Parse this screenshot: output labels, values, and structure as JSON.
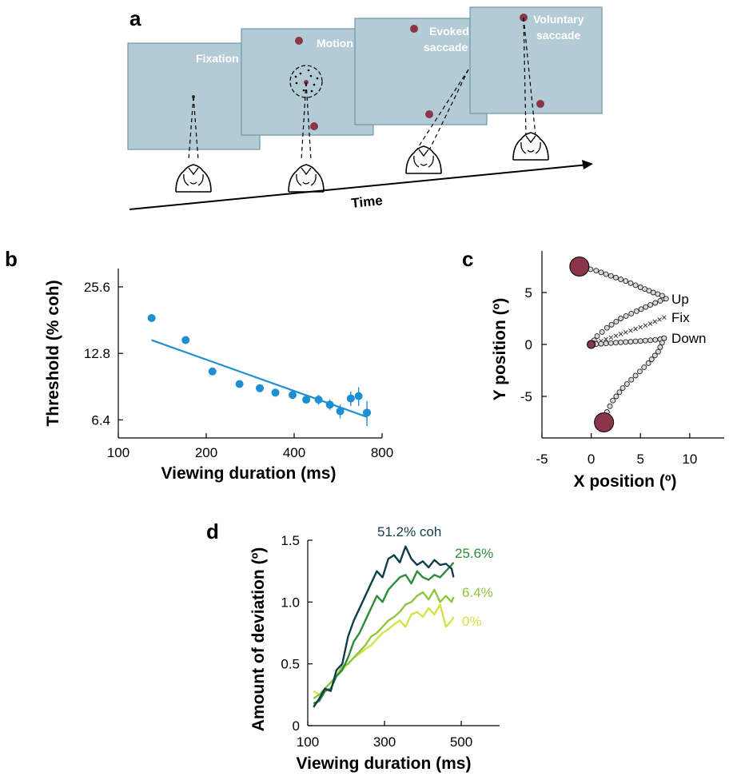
{
  "panel_a": {
    "label": "a",
    "screens": [
      {
        "name": "Fixation",
        "lines": [
          "Fixation"
        ]
      },
      {
        "name": "Motion",
        "lines": [
          "Motion"
        ]
      },
      {
        "name": "Evoked saccade",
        "lines": [
          "Evoked",
          "saccade"
        ]
      },
      {
        "name": "Voluntary saccade",
        "lines": [
          "Voluntary",
          "saccade"
        ]
      }
    ],
    "time_label": "Time",
    "colors": {
      "screen": "#b3cbd4",
      "screen_border": "#6f97a8",
      "target": "#8a3549"
    }
  },
  "chart_data": [
    {
      "panel": "b",
      "type": "scatter",
      "xlabel": "Viewing duration (ms)",
      "ylabel": "Threshold (% coh)",
      "xscale": "log",
      "yscale": "log",
      "xlim": [
        100,
        800
      ],
      "ylim": [
        5.3,
        31
      ],
      "xticks": [
        100,
        200,
        400,
        800
      ],
      "yticks": [
        6.4,
        12.8,
        25.6
      ],
      "ytick_labels": [
        "6.4",
        "12.8",
        "25.6"
      ],
      "points": {
        "x": [
          130,
          170,
          210,
          260,
          305,
          345,
          395,
          440,
          485,
          530,
          575,
          625,
          665,
          710
        ],
        "y": [
          18.5,
          14.7,
          10.6,
          9.3,
          8.9,
          8.5,
          8.3,
          7.9,
          7.9,
          7.5,
          7.0,
          8.0,
          8.2,
          6.9
        ],
        "err": [
          0.4,
          0.4,
          0.3,
          0.3,
          0.3,
          0.3,
          0.3,
          0.3,
          0.4,
          0.4,
          0.5,
          0.6,
          0.8,
          0.9
        ]
      },
      "fit": {
        "x": [
          130,
          710
        ],
        "y": [
          14.7,
          6.6
        ]
      },
      "color": "#1f8fd3",
      "grid": false
    },
    {
      "panel": "c",
      "type": "scatter",
      "xlabel": "X position (º)",
      "ylabel": "Y position (º)",
      "xlim": [
        -5,
        13.5
      ],
      "ylim": [
        -9,
        9
      ],
      "xticks": [
        -5,
        0,
        5,
        10
      ],
      "yticks": [
        -5,
        0,
        5
      ],
      "trajectories": [
        {
          "name": "Up",
          "marker": "circle",
          "x": [
            0,
            0.6,
            1.6,
            3.0,
            4.6,
            6.0,
            7.0,
            7.4
          ],
          "y": [
            0,
            0.8,
            1.6,
            2.5,
            3.2,
            3.8,
            4.2,
            4.4
          ]
        },
        {
          "name": "Fix",
          "marker": "cross",
          "x": [
            0,
            1.5,
            3.0,
            4.5,
            6.0,
            7.4
          ],
          "y": [
            0,
            0.5,
            1.0,
            1.5,
            2.0,
            2.6
          ]
        },
        {
          "name": "Down",
          "marker": "circle",
          "x": [
            0,
            1.5,
            3.0,
            4.5,
            6.0,
            7.0,
            7.4
          ],
          "y": [
            0,
            0.1,
            0.2,
            0.3,
            0.4,
            0.5,
            0.6
          ]
        },
        {
          "name": "",
          "marker": "circle",
          "x": [
            -1.2,
            0.5,
            2.0,
            3.5,
            5.0,
            6.3,
            7.2,
            7.6
          ],
          "y": [
            7.5,
            7.1,
            6.6,
            6.1,
            5.5,
            5.0,
            4.7,
            4.4
          ]
        },
        {
          "name": "",
          "marker": "circle",
          "x": [
            7.4,
            6.8,
            5.8,
            4.5,
            3.2,
            2.2,
            1.6,
            1.3
          ],
          "y": [
            0.6,
            -0.7,
            -1.8,
            -3.0,
            -4.2,
            -5.4,
            -6.5,
            -7.5
          ]
        }
      ],
      "targets": {
        "x": [
          -1.2,
          1.3
        ],
        "y": [
          7.5,
          -7.5
        ]
      },
      "origin": {
        "x": 0,
        "y": 0
      },
      "labels": [
        {
          "text": "Up",
          "x": 7.5,
          "y": 4.4
        },
        {
          "text": "Fix",
          "x": 7.5,
          "y": 2.6
        },
        {
          "text": "Down",
          "x": 7.5,
          "y": 0.6
        }
      ],
      "marker_color": "#8a3549"
    },
    {
      "panel": "d",
      "type": "line",
      "xlabel": "Viewing duration (ms)",
      "ylabel": "Amount of deviation (º)",
      "xlim": [
        100,
        600
      ],
      "ylim": [
        0,
        1.5
      ],
      "xticks": [
        100,
        300,
        500
      ],
      "yticks": [
        0,
        0.5,
        1.0,
        1.5
      ],
      "ytick_labels": [
        "0",
        "0.5",
        "1.0",
        "1.5"
      ],
      "series": [
        {
          "name": "51.2% coh",
          "color": "#0f3d4a",
          "x": [
            115,
            130,
            145,
            160,
            175,
            190,
            205,
            220,
            235,
            250,
            265,
            280,
            295,
            310,
            325,
            340,
            355,
            370,
            385,
            400,
            415,
            430,
            445,
            460,
            475,
            480
          ],
          "y": [
            0.15,
            0.22,
            0.3,
            0.28,
            0.45,
            0.5,
            0.72,
            0.85,
            0.95,
            1.05,
            1.15,
            1.25,
            1.2,
            1.35,
            1.38,
            1.32,
            1.45,
            1.35,
            1.3,
            1.33,
            1.28,
            1.34,
            1.3,
            1.31,
            1.27,
            1.2
          ]
        },
        {
          "name": "25.6%",
          "color": "#2e8b3a",
          "x": [
            115,
            130,
            145,
            160,
            175,
            190,
            205,
            220,
            235,
            250,
            265,
            280,
            295,
            310,
            325,
            340,
            355,
            370,
            385,
            400,
            415,
            430,
            445,
            460,
            475,
            480
          ],
          "y": [
            0.18,
            0.2,
            0.28,
            0.3,
            0.4,
            0.45,
            0.55,
            0.68,
            0.75,
            0.85,
            0.95,
            1.05,
            1.0,
            1.1,
            1.15,
            1.2,
            1.22,
            1.15,
            1.25,
            1.2,
            1.18,
            1.22,
            1.2,
            1.25,
            1.3,
            1.32
          ]
        },
        {
          "name": "6.4%",
          "color": "#8ec63f",
          "x": [
            115,
            130,
            145,
            160,
            175,
            190,
            205,
            220,
            235,
            250,
            265,
            280,
            295,
            310,
            325,
            340,
            355,
            370,
            385,
            400,
            415,
            430,
            445,
            460,
            475,
            480
          ],
          "y": [
            0.22,
            0.25,
            0.3,
            0.35,
            0.4,
            0.48,
            0.5,
            0.55,
            0.6,
            0.65,
            0.72,
            0.75,
            0.8,
            0.85,
            0.88,
            0.92,
            0.98,
            1.0,
            1.05,
            1.08,
            1.02,
            1.1,
            1.0,
            1.05,
            1.0,
            1.04
          ]
        },
        {
          "name": "0%",
          "color": "#d6e24a",
          "x": [
            115,
            130,
            145,
            160,
            175,
            190,
            205,
            220,
            235,
            250,
            265,
            280,
            295,
            310,
            325,
            340,
            355,
            370,
            385,
            400,
            415,
            430,
            445,
            460,
            475,
            480
          ],
          "y": [
            0.28,
            0.25,
            0.3,
            0.35,
            0.4,
            0.45,
            0.5,
            0.55,
            0.58,
            0.62,
            0.65,
            0.7,
            0.75,
            0.78,
            0.82,
            0.85,
            0.8,
            0.9,
            0.92,
            0.88,
            0.95,
            0.9,
            0.98,
            0.8,
            0.85,
            0.88
          ]
        }
      ],
      "grid": false
    }
  ],
  "panel_labels": {
    "b": "b",
    "c": "c",
    "d": "d"
  }
}
